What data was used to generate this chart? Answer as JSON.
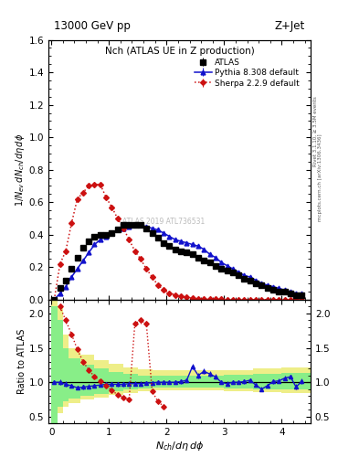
{
  "title_top": "13000 GeV pp",
  "title_right": "Z+Jet",
  "plot_title": "Nch (ATLAS UE in Z production)",
  "xlabel": "$N_{ch}/d\\eta\\, d\\phi$",
  "ylabel_main": "$1/N_{ev}\\, dN_{ch}/d\\eta\\, d\\phi$",
  "ylabel_ratio": "Ratio to ATLAS",
  "right_label_top": "Rivet 3.1.10, ≥ 3.5M events",
  "right_label_bot": "mcplots.cern.ch [arXiv:1306.3436]",
  "watermark": "ATLAS 2019 ATL736531",
  "atlas_x": [
    0.05,
    0.15,
    0.25,
    0.35,
    0.45,
    0.55,
    0.65,
    0.75,
    0.85,
    0.95,
    1.05,
    1.15,
    1.25,
    1.35,
    1.45,
    1.55,
    1.65,
    1.75,
    1.85,
    1.95,
    2.05,
    2.15,
    2.25,
    2.35,
    2.45,
    2.55,
    2.65,
    2.75,
    2.85,
    2.95,
    3.05,
    3.15,
    3.25,
    3.35,
    3.45,
    3.55,
    3.65,
    3.75,
    3.85,
    3.95,
    4.05,
    4.15,
    4.25,
    4.35
  ],
  "atlas_y": [
    0.0,
    0.07,
    0.12,
    0.19,
    0.26,
    0.32,
    0.36,
    0.39,
    0.4,
    0.4,
    0.41,
    0.43,
    0.46,
    0.46,
    0.46,
    0.46,
    0.44,
    0.41,
    0.38,
    0.35,
    0.33,
    0.31,
    0.3,
    0.29,
    0.28,
    0.26,
    0.24,
    0.23,
    0.21,
    0.19,
    0.18,
    0.17,
    0.15,
    0.13,
    0.12,
    0.1,
    0.09,
    0.07,
    0.06,
    0.05,
    0.05,
    0.04,
    0.03,
    0.03
  ],
  "atlas_yerr": [
    0.003,
    0.003,
    0.004,
    0.005,
    0.006,
    0.007,
    0.007,
    0.008,
    0.008,
    0.008,
    0.008,
    0.008,
    0.008,
    0.008,
    0.008,
    0.008,
    0.007,
    0.007,
    0.007,
    0.007,
    0.006,
    0.006,
    0.006,
    0.006,
    0.006,
    0.005,
    0.005,
    0.005,
    0.005,
    0.005,
    0.004,
    0.004,
    0.004,
    0.004,
    0.004,
    0.004,
    0.003,
    0.003,
    0.003,
    0.003,
    0.003,
    0.003,
    0.002,
    0.002
  ],
  "pythia_x": [
    0.05,
    0.15,
    0.25,
    0.35,
    0.45,
    0.55,
    0.65,
    0.75,
    0.85,
    0.95,
    1.05,
    1.15,
    1.25,
    1.35,
    1.45,
    1.55,
    1.65,
    1.75,
    1.85,
    1.95,
    2.05,
    2.15,
    2.25,
    2.35,
    2.45,
    2.55,
    2.65,
    2.75,
    2.85,
    2.95,
    3.05,
    3.15,
    3.25,
    3.35,
    3.45,
    3.55,
    3.65,
    3.75,
    3.85,
    3.95,
    4.05,
    4.15,
    4.25,
    4.35
  ],
  "pythia_y": [
    0.0,
    0.04,
    0.08,
    0.14,
    0.19,
    0.24,
    0.29,
    0.34,
    0.37,
    0.39,
    0.41,
    0.43,
    0.44,
    0.45,
    0.46,
    0.46,
    0.45,
    0.44,
    0.43,
    0.41,
    0.39,
    0.37,
    0.36,
    0.35,
    0.34,
    0.33,
    0.31,
    0.28,
    0.26,
    0.23,
    0.21,
    0.19,
    0.17,
    0.15,
    0.14,
    0.12,
    0.1,
    0.09,
    0.08,
    0.07,
    0.06,
    0.05,
    0.04,
    0.04
  ],
  "pythia_yerr": [
    0.001,
    0.001,
    0.002,
    0.002,
    0.002,
    0.003,
    0.003,
    0.003,
    0.003,
    0.003,
    0.003,
    0.003,
    0.003,
    0.003,
    0.003,
    0.003,
    0.003,
    0.003,
    0.003,
    0.003,
    0.003,
    0.003,
    0.003,
    0.003,
    0.003,
    0.003,
    0.002,
    0.002,
    0.002,
    0.002,
    0.002,
    0.002,
    0.002,
    0.002,
    0.002,
    0.002,
    0.001,
    0.001,
    0.001,
    0.001,
    0.001,
    0.001,
    0.001,
    0.001
  ],
  "sherpa_x": [
    0.05,
    0.15,
    0.25,
    0.35,
    0.45,
    0.55,
    0.65,
    0.75,
    0.85,
    0.95,
    1.05,
    1.15,
    1.25,
    1.35,
    1.45,
    1.55,
    1.65,
    1.75,
    1.85,
    1.95,
    2.05,
    2.15,
    2.25,
    2.35,
    2.45,
    2.55,
    2.65,
    2.75,
    2.85,
    2.95,
    3.05,
    3.15,
    3.25,
    3.35,
    3.45,
    3.55,
    3.65,
    3.75,
    3.85,
    3.95,
    4.05,
    4.15,
    4.25,
    4.35
  ],
  "sherpa_y": [
    0.0,
    0.22,
    0.3,
    0.47,
    0.62,
    0.66,
    0.7,
    0.71,
    0.71,
    0.63,
    0.57,
    0.5,
    0.44,
    0.37,
    0.3,
    0.25,
    0.19,
    0.14,
    0.09,
    0.06,
    0.04,
    0.03,
    0.02,
    0.015,
    0.01,
    0.008,
    0.006,
    0.005,
    0.004,
    0.003,
    0.002,
    0.002,
    0.001,
    0.001,
    0.001,
    0.001,
    0.001,
    0.001,
    0.0,
    0.0,
    0.0,
    0.0,
    0.0,
    0.0
  ],
  "sherpa_yerr": [
    0.001,
    0.004,
    0.005,
    0.007,
    0.007,
    0.007,
    0.007,
    0.007,
    0.007,
    0.007,
    0.006,
    0.006,
    0.006,
    0.005,
    0.005,
    0.004,
    0.004,
    0.003,
    0.003,
    0.003,
    0.002,
    0.002,
    0.001,
    0.001,
    0.001,
    0.001,
    0.001,
    0.001,
    0.001,
    0.001,
    0.001,
    0.001,
    0.001,
    0.001,
    0.001,
    0.001,
    0.001,
    0.001,
    0.001,
    0.001,
    0.001,
    0.001,
    0.001,
    0.001
  ],
  "ratio_pythia_x": [
    0.05,
    0.15,
    0.25,
    0.35,
    0.45,
    0.55,
    0.65,
    0.75,
    0.85,
    0.95,
    1.05,
    1.15,
    1.25,
    1.35,
    1.45,
    1.55,
    1.65,
    1.75,
    1.85,
    1.95,
    2.05,
    2.15,
    2.25,
    2.35,
    2.45,
    2.55,
    2.65,
    2.75,
    2.85,
    2.95,
    3.05,
    3.15,
    3.25,
    3.35,
    3.45,
    3.55,
    3.65,
    3.75,
    3.85,
    3.95,
    4.05,
    4.15,
    4.25,
    4.35
  ],
  "ratio_pythia_y": [
    1.0,
    1.0,
    0.97,
    0.95,
    0.92,
    0.93,
    0.94,
    0.95,
    0.96,
    0.97,
    0.97,
    0.97,
    0.97,
    0.98,
    0.98,
    0.98,
    0.99,
    0.99,
    1.0,
    1.0,
    1.0,
    1.0,
    1.01,
    1.03,
    1.23,
    1.1,
    1.16,
    1.12,
    1.08,
    1.0,
    0.98,
    1.0,
    1.0,
    1.01,
    1.03,
    0.96,
    0.9,
    0.95,
    1.01,
    1.02,
    1.06,
    1.08,
    0.93,
    1.02
  ],
  "ratio_pythia_yerr": [
    0.02,
    0.04,
    0.04,
    0.03,
    0.03,
    0.03,
    0.03,
    0.03,
    0.03,
    0.03,
    0.03,
    0.03,
    0.03,
    0.03,
    0.03,
    0.03,
    0.03,
    0.03,
    0.03,
    0.03,
    0.03,
    0.03,
    0.03,
    0.03,
    0.04,
    0.04,
    0.04,
    0.04,
    0.04,
    0.03,
    0.03,
    0.03,
    0.03,
    0.03,
    0.03,
    0.03,
    0.03,
    0.03,
    0.03,
    0.03,
    0.03,
    0.03,
    0.04,
    0.04
  ],
  "ratio_sherpa_x": [
    0.15,
    0.25,
    0.35,
    0.45,
    0.55,
    0.65,
    0.75,
    0.85,
    0.95,
    1.05,
    1.15,
    1.25,
    1.35,
    1.45,
    1.55,
    1.65,
    1.75,
    1.85,
    1.95
  ],
  "ratio_sherpa_y": [
    2.1,
    1.9,
    1.7,
    1.48,
    1.3,
    1.18,
    1.08,
    1.02,
    0.95,
    0.88,
    0.82,
    0.78,
    0.75,
    1.85,
    1.9,
    1.85,
    0.87,
    0.72,
    0.65
  ],
  "ratio_sherpa_yerr": [
    0.05,
    0.05,
    0.04,
    0.04,
    0.04,
    0.03,
    0.03,
    0.03,
    0.03,
    0.03,
    0.03,
    0.03,
    0.03,
    0.04,
    0.05,
    0.04,
    0.03,
    0.03,
    0.03
  ],
  "band_edges": [
    0.0,
    0.1,
    0.2,
    0.3,
    0.5,
    0.75,
    1.0,
    1.25,
    1.5,
    1.75,
    2.0,
    2.5,
    3.0,
    3.5,
    4.0,
    4.5
  ],
  "yellow_lo": [
    0.3,
    0.55,
    0.65,
    0.7,
    0.75,
    0.78,
    0.82,
    0.85,
    0.87,
    0.88,
    0.88,
    0.88,
    0.87,
    0.86,
    0.84,
    0.82
  ],
  "yellow_hi": [
    2.2,
    2.1,
    1.7,
    1.5,
    1.4,
    1.32,
    1.27,
    1.22,
    1.19,
    1.17,
    1.17,
    1.17,
    1.18,
    1.2,
    1.22,
    1.25
  ],
  "green_lo": [
    0.4,
    0.65,
    0.72,
    0.76,
    0.8,
    0.83,
    0.87,
    0.89,
    0.91,
    0.92,
    0.92,
    0.92,
    0.91,
    0.9,
    0.89,
    0.88
  ],
  "green_hi": [
    2.1,
    1.9,
    1.5,
    1.35,
    1.25,
    1.2,
    1.15,
    1.12,
    1.1,
    1.1,
    1.1,
    1.1,
    1.11,
    1.12,
    1.13,
    1.14
  ],
  "xlim": [
    -0.05,
    4.5
  ],
  "ylim_main": [
    0.0,
    1.6
  ],
  "ylim_ratio": [
    0.4,
    2.2
  ],
  "yticks_main": [
    0.0,
    0.2,
    0.4,
    0.6,
    0.8,
    1.0,
    1.2,
    1.4,
    1.6
  ],
  "yticks_ratio": [
    0.5,
    1.0,
    1.5,
    2.0
  ],
  "atlas_color": "#000000",
  "pythia_color": "#1111cc",
  "sherpa_color": "#cc1111",
  "yellow_color": "#eeee88",
  "green_color": "#88ee88",
  "bg_color": "#ffffff"
}
